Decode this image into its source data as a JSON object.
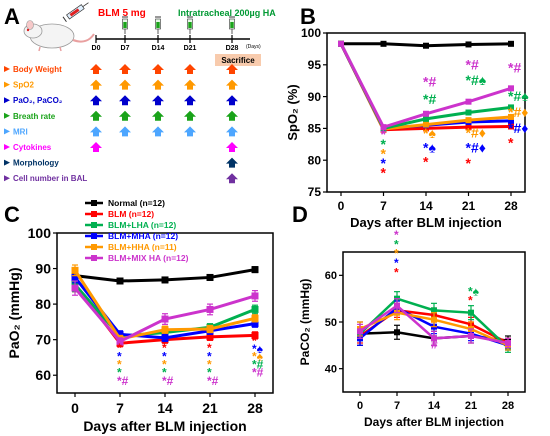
{
  "panels": {
    "A": {
      "letter": "A",
      "dose_label": "BLM 5 mg",
      "treatment_label": "Intratracheal 200µg HA",
      "timeline_days": [
        "D0",
        "D7",
        "D14",
        "D21",
        "D28"
      ],
      "days_unit": "(Days)",
      "sacrifice_label": "Sacrifice",
      "legend_rows": [
        {
          "label": "Body Weight",
          "color": "#ff4500",
          "arrow_days": [
            0,
            1,
            2,
            3,
            4
          ],
          "marker": "up-arrow"
        },
        {
          "label": "SpO2",
          "color": "#ff9900",
          "arrow_days": [
            0,
            1,
            2,
            3,
            4
          ],
          "marker": "up-arrow"
        },
        {
          "label": "PaO₂, PaCO₂",
          "color": "#0000cc",
          "arrow_days": [
            0,
            1,
            2,
            3,
            4
          ],
          "marker": "up-arrow"
        },
        {
          "label": "Breath rate",
          "color": "#1aa31a",
          "arrow_days": [
            0,
            1,
            2,
            3,
            4
          ],
          "marker": "up-arrow"
        },
        {
          "label": "MRI",
          "color": "#4da6ff",
          "arrow_days": [
            0,
            1,
            2,
            3,
            4
          ],
          "marker": "up-arrow"
        },
        {
          "label": "Cytokines",
          "color": "#ff00ff",
          "arrow_days": [
            0,
            4
          ],
          "marker": "up-arrow"
        },
        {
          "label": "Morphology",
          "color": "#003366",
          "arrow_days": [
            4
          ],
          "marker": "up-arrow"
        },
        {
          "label": "Cell number in BAL",
          "color": "#7030a0",
          "arrow_days": [
            4
          ],
          "marker": "up-arrow"
        }
      ]
    },
    "B": {
      "letter": "B"
    },
    "C": {
      "letter": "C"
    },
    "D": {
      "letter": "D"
    }
  },
  "chart_data": [
    {
      "panel": "B",
      "type": "line",
      "xlabel": "Days after BLM injection",
      "ylabel": "SpO₂ (%)",
      "x": [
        0,
        7,
        14,
        21,
        28
      ],
      "xticks": [
        "0",
        "7",
        "14",
        "21",
        "28"
      ],
      "ylim": [
        75,
        100
      ],
      "yticks": [
        75,
        80,
        85,
        90,
        95,
        100
      ],
      "series": [
        {
          "color": "#000000",
          "values": [
            98.3,
            98.3,
            98.0,
            98.2,
            98.3
          ]
        },
        {
          "color": "#ff0000",
          "values": [
            98.3,
            84.8,
            85.0,
            85.2,
            85.3
          ]
        },
        {
          "color": "#0000ff",
          "values": [
            98.3,
            85.0,
            85.5,
            86.0,
            86.2
          ]
        },
        {
          "color": "#ff9900",
          "values": [
            98.3,
            84.9,
            85.6,
            86.3,
            86.8
          ]
        },
        {
          "color": "#00b050",
          "values": [
            98.3,
            85.0,
            86.5,
            87.5,
            88.3
          ]
        },
        {
          "color": "#cc33cc",
          "values": [
            98.3,
            85.2,
            87.3,
            89.2,
            91.3
          ]
        }
      ],
      "annotations": [
        {
          "x": 7,
          "y": 83.3,
          "text": "*",
          "color": "#cc33cc"
        },
        {
          "x": 7,
          "y": 81.8,
          "text": "*",
          "color": "#00b050"
        },
        {
          "x": 7,
          "y": 80.3,
          "text": "*",
          "color": "#ff9900"
        },
        {
          "x": 7,
          "y": 78.8,
          "text": "*",
          "color": "#0000ff"
        },
        {
          "x": 7,
          "y": 77.3,
          "text": "*",
          "color": "#ff0000"
        },
        {
          "x": 14,
          "y": 91.6,
          "text": "*#",
          "color": "#cc33cc"
        },
        {
          "x": 14,
          "y": 88.8,
          "text": "*#",
          "color": "#00b050"
        },
        {
          "x": 14,
          "y": 83.5,
          "text": "*♠",
          "color": "#ff9900"
        },
        {
          "x": 14,
          "y": 81.2,
          "text": "*♠",
          "color": "#0000ff"
        },
        {
          "x": 14,
          "y": 79.0,
          "text": "*",
          "color": "#ff0000"
        },
        {
          "x": 21,
          "y": 94.3,
          "text": "*#",
          "color": "#cc33cc"
        },
        {
          "x": 21,
          "y": 91.8,
          "text": "*#♠",
          "color": "#00b050"
        },
        {
          "x": 21,
          "y": 83.6,
          "text": "*#♦",
          "color": "#ff9900"
        },
        {
          "x": 21,
          "y": 81.2,
          "text": "*#♦",
          "color": "#0000ff"
        },
        {
          "x": 21,
          "y": 78.8,
          "text": "*",
          "color": "#ff0000"
        },
        {
          "x": 28,
          "y": 93.8,
          "text": "*#",
          "color": "#cc33cc"
        },
        {
          "x": 28,
          "y": 89.3,
          "text": "*#♠",
          "color": "#00b050"
        },
        {
          "x": 28,
          "y": 86.8,
          "text": "*#♦",
          "color": "#ff9900"
        },
        {
          "x": 28,
          "y": 84.3,
          "text": "*#♦",
          "color": "#0000ff"
        },
        {
          "x": 28,
          "y": 82.0,
          "text": "*",
          "color": "#ff0000"
        }
      ]
    },
    {
      "panel": "C",
      "type": "line",
      "xlabel": "Days after BLM injection",
      "ylabel": "PaO₂ (mmHg)",
      "x": [
        0,
        7,
        14,
        21,
        28
      ],
      "xticks": [
        "0",
        "7",
        "14",
        "21",
        "28"
      ],
      "ylim": [
        55,
        100
      ],
      "yticks": [
        60,
        70,
        80,
        90,
        100
      ],
      "legend_position": "top-left",
      "series": [
        {
          "name": "Normal (n=12)",
          "color": "#000000",
          "values": [
            88.0,
            86.5,
            86.8,
            87.5,
            89.7
          ],
          "errors": [
            1.5,
            0.8,
            0.8,
            0.8,
            0.8
          ]
        },
        {
          "name": "BLM (n=12)",
          "color": "#ff0000",
          "values": [
            85.5,
            69.0,
            70.0,
            70.8,
            71.2
          ],
          "errors": [
            2.0,
            1.0,
            1.0,
            1.0,
            1.0
          ]
        },
        {
          "name": "BLM+LHA (n=12)",
          "color": "#00b050",
          "values": [
            85.5,
            71.0,
            72.0,
            73.5,
            78.5
          ],
          "errors": [
            2.0,
            1.0,
            1.0,
            1.0,
            1.2
          ]
        },
        {
          "name": "BLM+MHA (n=12)",
          "color": "#0000ff",
          "values": [
            87.5,
            71.5,
            70.5,
            72.5,
            74.5
          ],
          "errors": [
            1.5,
            1.0,
            1.0,
            1.0,
            1.0
          ]
        },
        {
          "name": "BLM+HHA (n=11)",
          "color": "#ff9900",
          "values": [
            89.5,
            70.2,
            72.8,
            73.0,
            76.0
          ],
          "errors": [
            1.5,
            1.0,
            1.0,
            1.0,
            1.0
          ]
        },
        {
          "name": "BLM+MIX HA (n=12)",
          "color": "#cc33cc",
          "values": [
            84.5,
            69.5,
            75.8,
            78.5,
            82.3
          ],
          "errors": [
            2.0,
            1.0,
            1.5,
            1.5,
            1.5
          ]
        }
      ],
      "annotations": [
        {
          "x": 7,
          "y": 66.5,
          "text": "*",
          "color": "#ff0000"
        },
        {
          "x": 7,
          "y": 64.2,
          "text": "*",
          "color": "#0000ff"
        },
        {
          "x": 7,
          "y": 61.9,
          "text": "*",
          "color": "#ff9900"
        },
        {
          "x": 7,
          "y": 59.6,
          "text": "*",
          "color": "#00b050"
        },
        {
          "x": 7,
          "y": 57.3,
          "text": "*#",
          "color": "#cc33cc"
        },
        {
          "x": 14,
          "y": 66.5,
          "text": "*",
          "color": "#ff0000"
        },
        {
          "x": 14,
          "y": 64.2,
          "text": "*",
          "color": "#0000ff"
        },
        {
          "x": 14,
          "y": 61.9,
          "text": "*",
          "color": "#ff9900"
        },
        {
          "x": 14,
          "y": 59.6,
          "text": "*",
          "color": "#00b050"
        },
        {
          "x": 14,
          "y": 57.3,
          "text": "*#",
          "color": "#cc33cc"
        },
        {
          "x": 21,
          "y": 66.5,
          "text": "*",
          "color": "#ff0000"
        },
        {
          "x": 21,
          "y": 64.2,
          "text": "*",
          "color": "#0000ff"
        },
        {
          "x": 21,
          "y": 61.9,
          "text": "*",
          "color": "#ff9900"
        },
        {
          "x": 21,
          "y": 59.6,
          "text": "*",
          "color": "#00b050"
        },
        {
          "x": 21,
          "y": 57.3,
          "text": "*#",
          "color": "#cc33cc"
        },
        {
          "x": 28,
          "y": 68.5,
          "text": "*",
          "color": "#ff0000"
        },
        {
          "x": 28,
          "y": 66.3,
          "text": "*♠",
          "color": "#0000ff"
        },
        {
          "x": 28,
          "y": 64.1,
          "text": "*♠",
          "color": "#ff9900"
        },
        {
          "x": 28,
          "y": 61.9,
          "text": "*#",
          "color": "#00b050"
        },
        {
          "x": 28,
          "y": 59.7,
          "text": "*#",
          "color": "#cc33cc"
        }
      ]
    },
    {
      "panel": "D",
      "type": "line",
      "xlabel": "Days after BLM injection",
      "ylabel": "PaCO₂ (mmHg)",
      "x": [
        0,
        7,
        14,
        21,
        28
      ],
      "xticks": [
        "0",
        "7",
        "14",
        "21",
        "28"
      ],
      "ylim": [
        35,
        65
      ],
      "yticks": [
        40,
        50,
        60
      ],
      "series": [
        {
          "color": "#000000",
          "values": [
            47.5,
            47.8,
            46.5,
            47.0,
            46.0
          ],
          "errors": [
            2.5,
            1.5,
            1.5,
            1.5,
            1.0
          ]
        },
        {
          "color": "#ff0000",
          "values": [
            47.0,
            52.5,
            51.5,
            49.5,
            45.5
          ],
          "errors": [
            1.5,
            1.5,
            1.5,
            1.5,
            1.0
          ]
        },
        {
          "color": "#00b050",
          "values": [
            47.5,
            55.0,
            52.5,
            52.0,
            44.5
          ],
          "errors": [
            1.5,
            1.5,
            1.5,
            1.5,
            1.0
          ]
        },
        {
          "color": "#0000ff",
          "values": [
            46.5,
            53.0,
            49.0,
            47.5,
            45.0
          ],
          "errors": [
            1.5,
            1.5,
            1.5,
            1.5,
            1.0
          ]
        },
        {
          "color": "#ff9900",
          "values": [
            48.5,
            52.0,
            50.5,
            48.5,
            45.0
          ],
          "errors": [
            1.5,
            1.5,
            1.5,
            1.5,
            1.0
          ]
        },
        {
          "color": "#cc33cc",
          "values": [
            48.0,
            53.5,
            46.5,
            47.0,
            45.5
          ],
          "errors": [
            1.5,
            1.5,
            1.5,
            1.5,
            1.0
          ]
        }
      ],
      "annotations": [
        {
          "x": 7,
          "y": 67.8,
          "text": "*",
          "color": "#cc33cc"
        },
        {
          "x": 7,
          "y": 65.8,
          "text": "*",
          "color": "#00b050"
        },
        {
          "x": 7,
          "y": 63.8,
          "text": "*",
          "color": "#ff9900"
        },
        {
          "x": 7,
          "y": 61.8,
          "text": "*",
          "color": "#0000ff"
        },
        {
          "x": 7,
          "y": 59.8,
          "text": "*",
          "color": "#ff0000"
        },
        {
          "x": 14,
          "y": 44.3,
          "text": "#",
          "color": "#cc33cc"
        },
        {
          "x": 21,
          "y": 55.7,
          "text": "*♠",
          "color": "#00b050"
        },
        {
          "x": 21,
          "y": 53.7,
          "text": "*",
          "color": "#ff0000"
        }
      ]
    }
  ]
}
